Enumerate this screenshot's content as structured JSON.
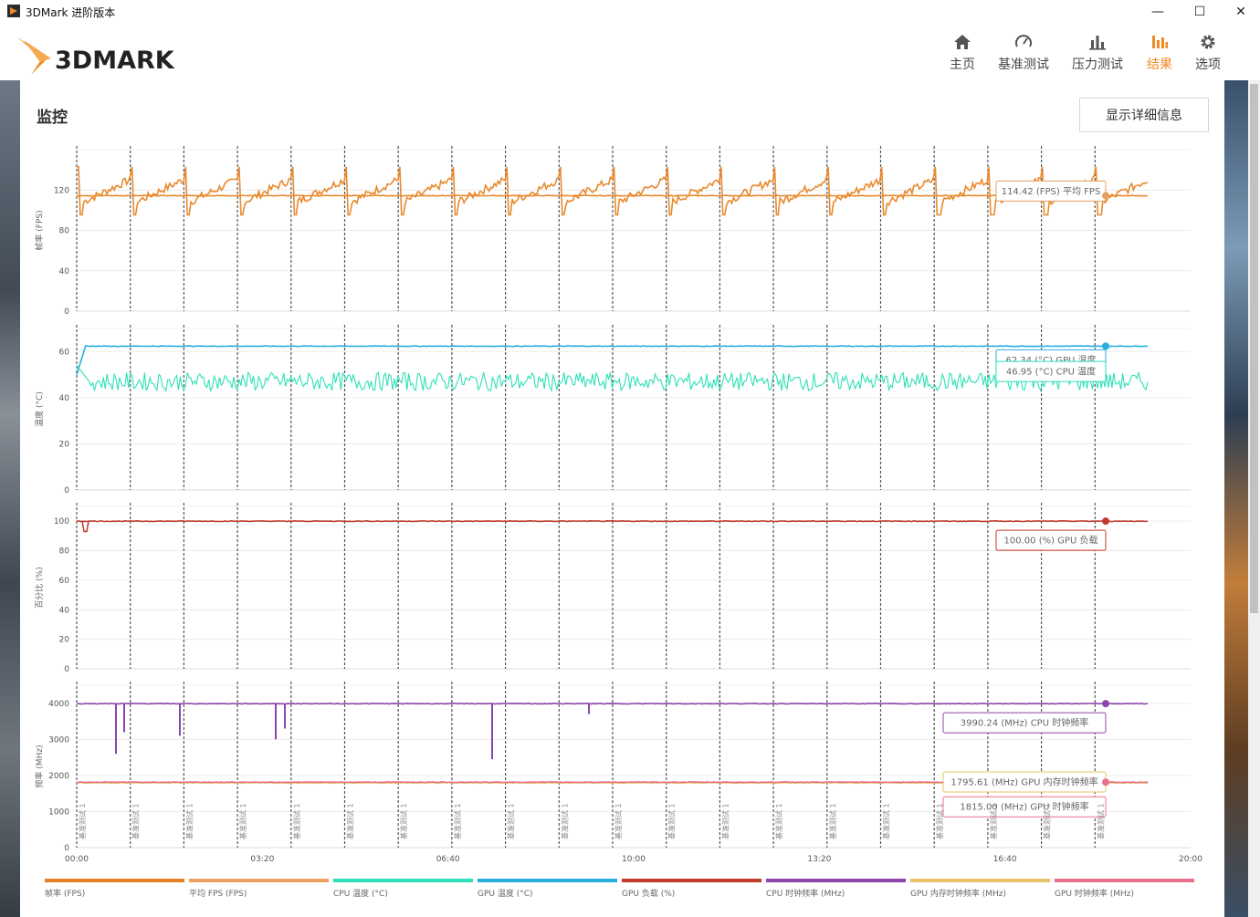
{
  "window": {
    "title": "3DMark 进阶版本",
    "minimize": "—",
    "maximize": "☐",
    "close": "✕"
  },
  "header": {
    "logo_text": "3DMARK",
    "nav": [
      {
        "label": "主页",
        "icon": "home-icon"
      },
      {
        "label": "基准测试",
        "icon": "gauge-icon"
      },
      {
        "label": "压力测试",
        "icon": "bar-chart-icon"
      },
      {
        "label": "结果",
        "icon": "results-icon",
        "active": true
      },
      {
        "label": "选项",
        "icon": "gear-icon"
      }
    ],
    "accent": "#f08a24"
  },
  "monitor": {
    "title": "监控",
    "detail_button": "显示详细信息"
  },
  "chart_data": {
    "type": "line",
    "x_ticks": [
      "00:00",
      "03:20",
      "06:40",
      "10:00",
      "13:20",
      "16:40",
      "20:00"
    ],
    "x_range_seconds": [
      0,
      1200
    ],
    "marker_label": "基准测试 1",
    "marker_count": 20,
    "panels": [
      {
        "ylabel": "帧率 (FPS)",
        "ylim": [
          0,
          160
        ],
        "yticks": [
          0,
          40,
          80,
          120
        ],
        "series": [
          {
            "name": "帧率 (FPS)",
            "color": "#e88a2e",
            "pattern": "sawtooth",
            "base": 115,
            "spread": 28
          },
          {
            "name": "平均 FPS (FPS)",
            "color": "#e88a2e",
            "constant": 114.42
          }
        ],
        "callouts": [
          {
            "text": "114.42 (FPS) 平均 FPS",
            "color": "#e8a060"
          }
        ]
      },
      {
        "ylabel": "温度 (°C)",
        "ylim": [
          0,
          70
        ],
        "yticks": [
          0,
          20,
          40,
          60
        ],
        "series": [
          {
            "name": "GPU 温度 (°C)",
            "color": "#29aee0",
            "constant": 62.34
          },
          {
            "name": "CPU 温度 (°C)",
            "color": "#2ee0b8",
            "noise": true,
            "base": 47,
            "spread": 4
          }
        ],
        "callouts": [
          {
            "text": "62.34 (°C) GPU 温度",
            "color": "#29aee0"
          },
          {
            "text": "46.95 (°C) CPU 温度",
            "color": "#2ee0b8"
          }
        ]
      },
      {
        "ylabel": "百分比 (%)",
        "ylim": [
          0,
          110
        ],
        "yticks": [
          0,
          20,
          40,
          60,
          80,
          100
        ],
        "series": [
          {
            "name": "GPU 负载 (%)",
            "color": "#c0392b",
            "constant": 100
          }
        ],
        "callouts": [
          {
            "text": "100.00 (%) GPU 负载",
            "color": "#c0392b"
          }
        ]
      },
      {
        "ylabel": "频率 (MHz)",
        "ylim": [
          0,
          4500
        ],
        "yticks": [
          0,
          1000,
          2000,
          3000,
          4000
        ],
        "series": [
          {
            "name": "CPU 时钟频率 (MHz)",
            "color": "#8e44ad",
            "constant": 3990.24
          },
          {
            "name": "GPU 内存时钟频率 (MHz)",
            "color": "#e8c36a",
            "constant": 1795.61
          },
          {
            "name": "GPU 时钟频率 (MHz)",
            "color": "#e8708a",
            "constant": 1815.0
          }
        ],
        "callouts": [
          {
            "text": "3990.24 (MHz) CPU 时钟频率",
            "color": "#8e44ad"
          },
          {
            "text": "1795.61 (MHz) GPU 内存时钟频率",
            "color": "#e8c36a"
          },
          {
            "text": "1815.00 (MHz) GPU 时钟频率",
            "color": "#e8708a"
          }
        ]
      }
    ],
    "legend": [
      {
        "name": "帧率 (FPS)",
        "color": "#e67e22"
      },
      {
        "name": "平均 FPS (FPS)",
        "color": "#eea060"
      },
      {
        "name": "CPU 温度 (°C)",
        "color": "#2ee0b8"
      },
      {
        "name": "GPU 温度 (°C)",
        "color": "#29aee0"
      },
      {
        "name": "GPU 负载 (%)",
        "color": "#c0392b"
      },
      {
        "name": "CPU 时钟频率 (MHz)",
        "color": "#8e44ad"
      },
      {
        "name": "GPU 内存时钟频率 (MHz)",
        "color": "#e8c36a"
      },
      {
        "name": "GPU 时钟频率 (MHz)",
        "color": "#e8708a"
      }
    ]
  }
}
